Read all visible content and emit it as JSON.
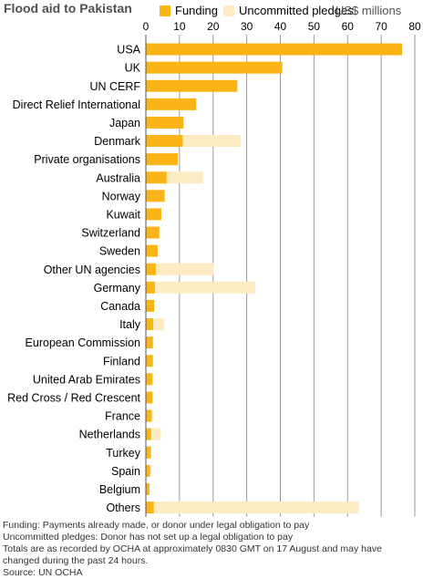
{
  "title": "Flood aid to Pakistan",
  "units": "US$ millions",
  "colors": {
    "funding": "#FBB416",
    "pledges": "#FDEBC4",
    "grid": "#9a9a9a"
  },
  "chart_data": {
    "type": "bar",
    "orientation": "horizontal",
    "stacked": true,
    "xlim": [
      0,
      80
    ],
    "xticks": [
      0,
      10,
      20,
      30,
      40,
      50,
      60,
      70,
      80
    ],
    "grid": true,
    "legend_position": "top",
    "categories": [
      "USA",
      "UK",
      "UN CERF",
      "Direct Relief International",
      "Japan",
      "Denmark",
      "Private organisations",
      "Australia",
      "Norway",
      "Kuwait",
      "Switzerland",
      "Sweden",
      "Other UN agencies",
      "Germany",
      "Canada",
      "Italy",
      "European Commission",
      "Finland",
      "United Arab Emirates",
      "Red Cross / Red Crescent",
      "France",
      "Netherlands",
      "Turkey",
      "Spain",
      "Belgium",
      "Others"
    ],
    "series": [
      {
        "name": "Funding",
        "values": [
          76.2,
          40.6,
          27.2,
          15.0,
          11.2,
          11.0,
          9.5,
          6.2,
          5.6,
          4.6,
          4.0,
          3.5,
          3.0,
          2.7,
          2.5,
          2.2,
          2.1,
          2.1,
          2.0,
          2.0,
          1.8,
          1.6,
          1.5,
          1.3,
          1.1,
          2.4
        ]
      },
      {
        "name": "Uncommitted pledges",
        "values": [
          0,
          0,
          0,
          0,
          0,
          17.2,
          0,
          10.8,
          0,
          0,
          0,
          0,
          17.2,
          29.8,
          0,
          3.2,
          0,
          0,
          0,
          0,
          0,
          2.9,
          0,
          0,
          0,
          61.0
        ]
      }
    ]
  },
  "footnotes": [
    "Funding: Payments already made, or donor under legal obligation to pay",
    "Uncommitted pledges: Donor has not set up a legal obligation to pay",
    "Totals are as recorded by OCHA at approximately 0830 GMT on 17 August and may have",
    "changed during the past 24 hours.",
    "Source: UN OCHA"
  ]
}
